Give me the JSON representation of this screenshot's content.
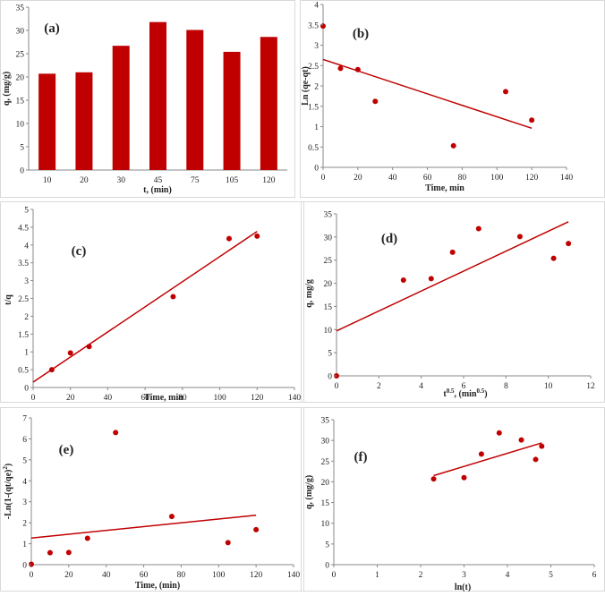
{
  "colors": {
    "series": "#c00000",
    "axis": "#888888"
  },
  "chart_data": [
    {
      "panel": "(a)",
      "type": "bar",
      "xlabel": "t, (min)",
      "ylabel": "q, (mg/g)",
      "categories": [
        "10",
        "20",
        "30",
        "45",
        "75",
        "105",
        "120"
      ],
      "values": [
        20.7,
        21.0,
        26.7,
        31.8,
        30.1,
        25.4,
        28.6
      ],
      "ylim": [
        0,
        35
      ],
      "yticks": [
        0,
        5,
        10,
        15,
        20,
        25,
        30,
        35
      ],
      "grid": false
    },
    {
      "panel": "(b)",
      "type": "scatter",
      "xlabel": "Time, min",
      "ylabel": "Ln (qe-qt)",
      "points": {
        "x": [
          0,
          10,
          20,
          30,
          75,
          105,
          120
        ],
        "y": [
          3.47,
          2.43,
          2.4,
          1.62,
          0.53,
          1.86,
          1.16
        ]
      },
      "trendline": {
        "x": [
          0,
          120
        ],
        "y": [
          2.65,
          0.96
        ]
      },
      "xlim": [
        0,
        140
      ],
      "ylim": [
        0,
        4
      ],
      "xticks": [
        0,
        20,
        40,
        60,
        80,
        100,
        120,
        140
      ],
      "yticks": [
        0,
        0.5,
        1,
        1.5,
        2,
        2.5,
        3,
        3.5,
        4
      ],
      "grid": false
    },
    {
      "panel": "(c)",
      "type": "scatter",
      "xlabel": "Time, min",
      "ylabel": "t/q",
      "points": {
        "x": [
          10,
          20,
          30,
          75,
          105,
          120
        ],
        "y": [
          0.5,
          0.97,
          1.15,
          2.55,
          4.18,
          4.25
        ]
      },
      "trendline": {
        "x": [
          0,
          120
        ],
        "y": [
          0.15,
          4.38
        ]
      },
      "xlim": [
        0,
        140
      ],
      "ylim": [
        0,
        5
      ],
      "xticks": [
        0,
        20,
        40,
        60,
        80,
        100,
        120,
        140
      ],
      "yticks": [
        0,
        0.5,
        1,
        1.5,
        2,
        2.5,
        3,
        3.5,
        4,
        4.5,
        5
      ],
      "grid": false
    },
    {
      "panel": "(d)",
      "type": "scatter",
      "xlabel": "t",
      "xlabel_sup": "0.5",
      "xlabel_tail": ", (min",
      "xlabel_tail_sup": "0.5",
      "xlabel_end": ")",
      "ylabel": "q, mg/g",
      "points": {
        "x": [
          0,
          3.16,
          4.47,
          5.48,
          6.71,
          8.66,
          10.25,
          10.95
        ],
        "y": [
          0,
          20.7,
          21.0,
          26.7,
          31.8,
          30.1,
          25.4,
          28.6
        ]
      },
      "trendline": {
        "x": [
          0,
          10.95
        ],
        "y": [
          9.7,
          33.3
        ]
      },
      "xlim": [
        0,
        12
      ],
      "ylim": [
        0,
        35
      ],
      "xticks": [
        0,
        2,
        4,
        6,
        8,
        10,
        12
      ],
      "yticks": [
        0,
        5,
        10,
        15,
        20,
        25,
        30,
        35
      ],
      "grid": false
    },
    {
      "panel": "(e)",
      "type": "scatter",
      "xlabel": "Time, (min)",
      "ylabel": "-Ln(1-(qt/qe)",
      "ylabel_sup": "2",
      "ylabel_end": ")",
      "points": {
        "x": [
          0,
          10,
          20,
          30,
          45,
          75,
          105,
          120
        ],
        "y": [
          0.02,
          0.57,
          0.58,
          1.26,
          6.3,
          2.3,
          1.05,
          1.67
        ]
      },
      "trendline": {
        "x": [
          0,
          120
        ],
        "y": [
          1.27,
          2.36
        ]
      },
      "xlim": [
        0,
        140
      ],
      "ylim": [
        0,
        7
      ],
      "xticks": [
        0,
        20,
        40,
        60,
        80,
        100,
        120,
        140
      ],
      "yticks": [
        0,
        1,
        2,
        3,
        4,
        5,
        6,
        7
      ],
      "grid": false
    },
    {
      "panel": "(f)",
      "type": "scatter",
      "xlabel": "ln(t)",
      "ylabel": "q, (mg/g)",
      "points": {
        "x": [
          2.3,
          3.0,
          3.4,
          3.81,
          4.32,
          4.65,
          4.79
        ],
        "y": [
          20.7,
          21.0,
          26.7,
          31.8,
          30.1,
          25.4,
          28.6
        ]
      },
      "trendline": {
        "x": [
          2.3,
          4.79
        ],
        "y": [
          21.5,
          29.4
        ]
      },
      "xlim": [
        0,
        6
      ],
      "ylim": [
        0,
        35
      ],
      "xticks": [
        0,
        1,
        2,
        3,
        4,
        5,
        6
      ],
      "yticks": [
        0,
        5,
        10,
        15,
        20,
        25,
        30,
        35
      ],
      "grid": false
    }
  ]
}
